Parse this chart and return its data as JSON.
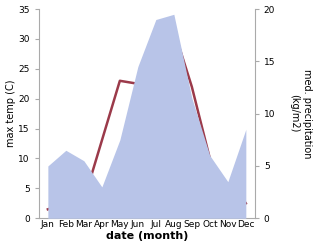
{
  "months": [
    "Jan",
    "Feb",
    "Mar",
    "Apr",
    "May",
    "Jun",
    "Jul",
    "Aug",
    "Sep",
    "Oct",
    "Nov",
    "Dec"
  ],
  "month_x": [
    1,
    2,
    3,
    4,
    5,
    6,
    7,
    8,
    9,
    10,
    11,
    12
  ],
  "temp": [
    1.5,
    2.5,
    3.0,
    13.0,
    23.0,
    22.5,
    31.5,
    31.5,
    22.0,
    10.0,
    1.0,
    2.5
  ],
  "precip": [
    5.0,
    6.5,
    5.5,
    3.0,
    7.5,
    14.5,
    19.0,
    19.5,
    11.5,
    6.0,
    3.5,
    8.5
  ],
  "temp_color": "#9b3a4a",
  "precip_fill_color": "#b8c4e8",
  "temp_ylim": [
    0,
    35
  ],
  "temp_yticks": [
    0,
    5,
    10,
    15,
    20,
    25,
    30,
    35
  ],
  "precip_ylim": [
    0,
    20
  ],
  "precip_yticks": [
    0,
    5,
    10,
    15,
    20
  ],
  "xlabel": "date (month)",
  "ylabel_left": "max temp (C)",
  "ylabel_right": "med. precipitation\n(kg/m2)",
  "background_color": "#ffffff",
  "line_width": 1.8,
  "spine_color": "#aaaaaa",
  "tick_labelsize": 6.5,
  "ylabel_fontsize": 7,
  "xlabel_fontsize": 8
}
